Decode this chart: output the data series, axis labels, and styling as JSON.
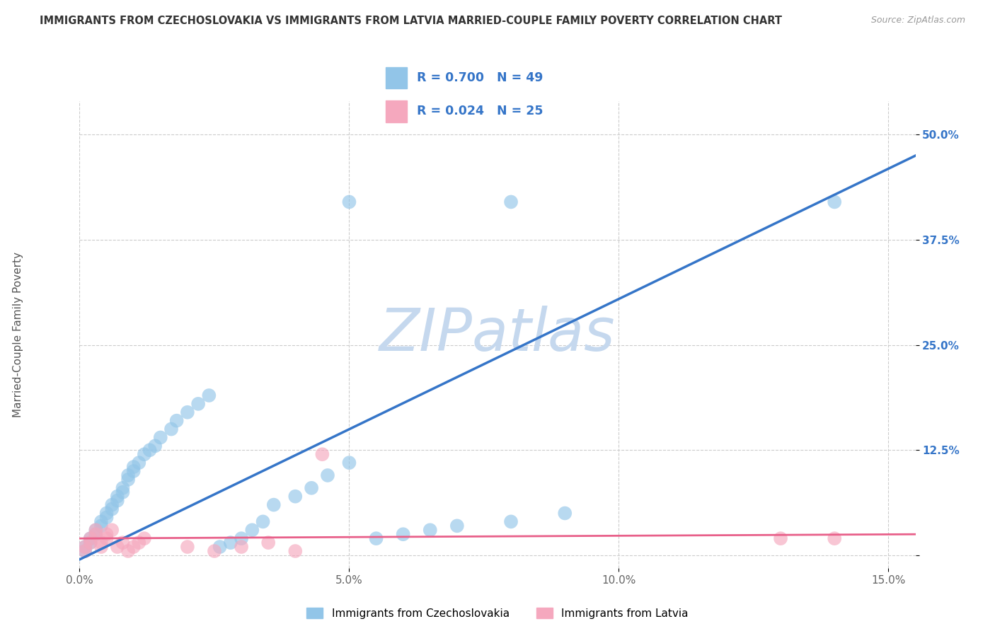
{
  "title": "IMMIGRANTS FROM CZECHOSLOVAKIA VS IMMIGRANTS FROM LATVIA MARRIED-COUPLE FAMILY POVERTY CORRELATION CHART",
  "source": "Source: ZipAtlas.com",
  "ylabel": "Married-Couple Family Poverty",
  "series1_label": "Immigrants from Czechoslovakia",
  "series2_label": "Immigrants from Latvia",
  "xlim": [
    0.0,
    0.155
  ],
  "ylim": [
    -0.015,
    0.54
  ],
  "xtick_positions": [
    0.0,
    0.05,
    0.1,
    0.15
  ],
  "xtick_labels": [
    "0.0%",
    "5.0%",
    "10.0%",
    "15.0%"
  ],
  "ytick_positions": [
    0.0,
    0.125,
    0.25,
    0.375,
    0.5
  ],
  "ytick_labels": [
    "",
    "12.5%",
    "25.0%",
    "37.5%",
    "50.0%"
  ],
  "R1": 0.7,
  "N1": 49,
  "R2": 0.024,
  "N2": 25,
  "color1": "#92C5E8",
  "color2": "#F5A8BE",
  "trendline1_color": "#3575C8",
  "trendline2_color": "#E8608A",
  "ytick_color": "#3575C8",
  "watermark_color": "#C5D8EE",
  "background_color": "#FFFFFF",
  "grid_color": "#CCCCCC",
  "title_color": "#333333",
  "source_color": "#999999",
  "series1_x": [
    0.001,
    0.001,
    0.002,
    0.002,
    0.003,
    0.003,
    0.004,
    0.004,
    0.005,
    0.005,
    0.006,
    0.006,
    0.007,
    0.007,
    0.008,
    0.008,
    0.009,
    0.009,
    0.01,
    0.01,
    0.011,
    0.012,
    0.013,
    0.014,
    0.015,
    0.017,
    0.018,
    0.02,
    0.022,
    0.024,
    0.026,
    0.028,
    0.03,
    0.032,
    0.034,
    0.036,
    0.04,
    0.043,
    0.046,
    0.05,
    0.055,
    0.06,
    0.065,
    0.07,
    0.08,
    0.09,
    0.05,
    0.08,
    0.14
  ],
  "series1_y": [
    0.005,
    0.01,
    0.015,
    0.02,
    0.025,
    0.03,
    0.035,
    0.04,
    0.045,
    0.05,
    0.055,
    0.06,
    0.065,
    0.07,
    0.075,
    0.08,
    0.09,
    0.095,
    0.1,
    0.105,
    0.11,
    0.12,
    0.125,
    0.13,
    0.14,
    0.15,
    0.16,
    0.17,
    0.18,
    0.19,
    0.01,
    0.015,
    0.02,
    0.03,
    0.04,
    0.06,
    0.07,
    0.08,
    0.095,
    0.11,
    0.02,
    0.025,
    0.03,
    0.035,
    0.04,
    0.05,
    0.42,
    0.42,
    0.42
  ],
  "series2_x": [
    0.001,
    0.001,
    0.002,
    0.002,
    0.003,
    0.003,
    0.004,
    0.004,
    0.005,
    0.005,
    0.006,
    0.007,
    0.008,
    0.009,
    0.01,
    0.011,
    0.012,
    0.02,
    0.025,
    0.03,
    0.035,
    0.04,
    0.045,
    0.13,
    0.14
  ],
  "series2_y": [
    0.005,
    0.01,
    0.015,
    0.02,
    0.025,
    0.03,
    0.01,
    0.015,
    0.02,
    0.025,
    0.03,
    0.01,
    0.015,
    0.005,
    0.01,
    0.015,
    0.02,
    0.01,
    0.005,
    0.01,
    0.015,
    0.005,
    0.12,
    0.02,
    0.02
  ]
}
